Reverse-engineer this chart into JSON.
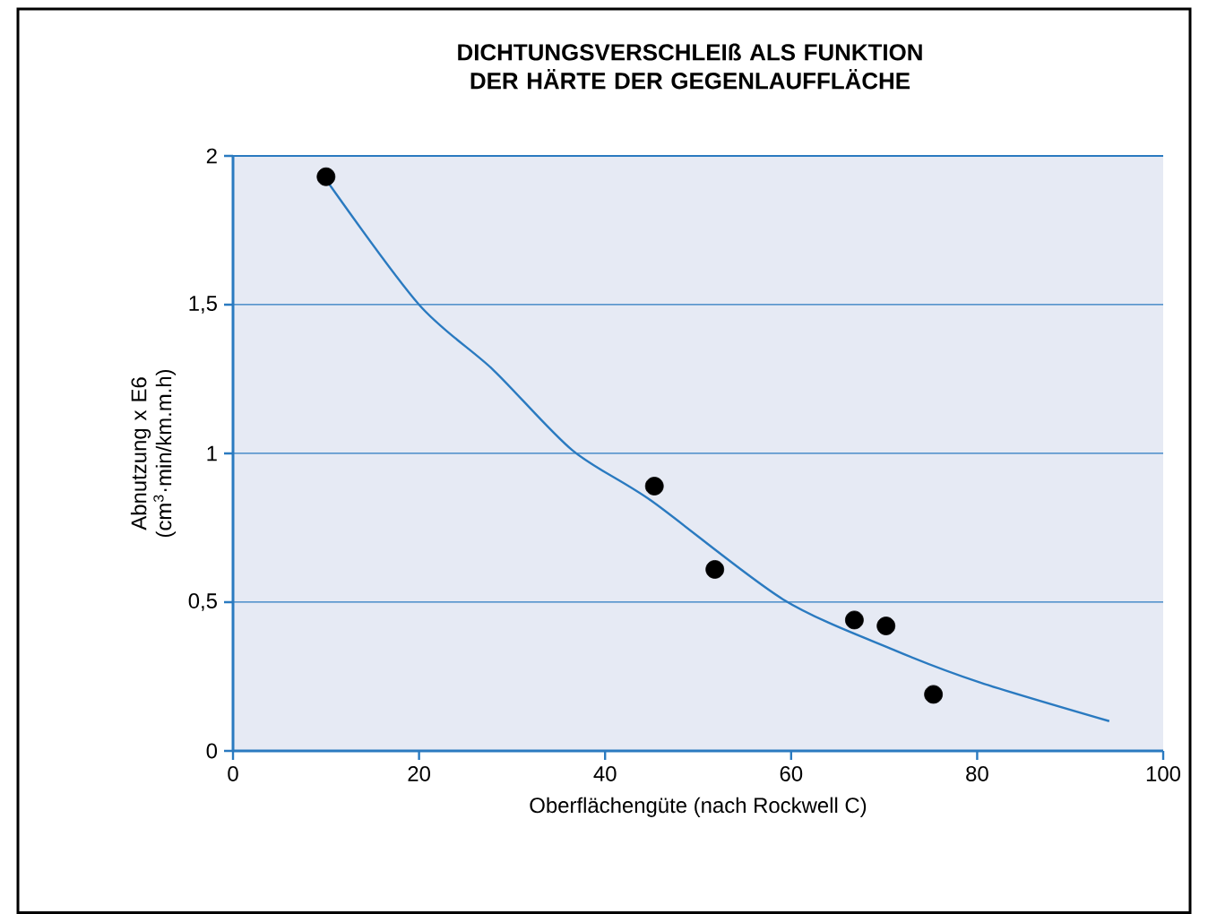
{
  "chart_data": {
    "type": "scatter",
    "title": "DICHTUNGSVERSCHLEIß ALS FUNKTION DER HÄRTE DER GEGENLAUFFLÄCHE",
    "xlabel": "Oberflächengüte (nach Rockwell C)",
    "ylabel": "Abnutzung x E6 (cm$^{3}$·min/km.m.h)",
    "series": [
      {
        "color": "#000000",
        "marker": "circle",
        "x": [
          10,
          45.3,
          51.8,
          66.8,
          70.2,
          75.3
        ],
        "values": [
          1.93,
          0.89,
          0.61,
          0.44,
          0.42,
          0.19
        ]
      },
      {
        "type": "line",
        "color": "#2a7ac0",
        "marker": "none",
        "x": [
          10,
          20,
          28,
          36.5,
          45,
          59.1,
          71,
          80.3,
          94.2
        ],
        "values": [
          1.92,
          1.5,
          1.28,
          1.01,
          0.84,
          0.51,
          0.34,
          0.23,
          0.1
        ]
      }
    ],
    "xlim": [
      0,
      100
    ],
    "ylim": [
      0,
      2
    ],
    "xticks": [
      0,
      20,
      40,
      60,
      80,
      100
    ],
    "yticks": [
      0,
      {
        "value": 0.5,
        "label": "0,5"
      },
      1,
      {
        "value": 1.5,
        "label": "1,5"
      },
      2
    ],
    "grid": "y"
  }
}
